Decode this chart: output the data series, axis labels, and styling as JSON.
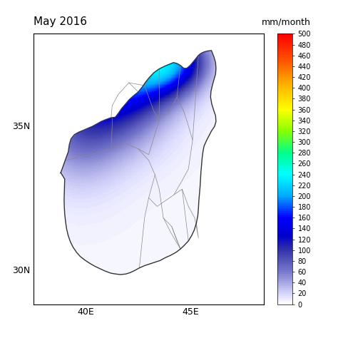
{
  "title": "May 2016",
  "unit_label": "mm/month",
  "colorbar_min": 0,
  "colorbar_max": 500,
  "colorbar_ticks": [
    0,
    20,
    40,
    60,
    80,
    100,
    120,
    140,
    160,
    180,
    200,
    220,
    240,
    260,
    280,
    300,
    320,
    340,
    360,
    380,
    400,
    420,
    440,
    460,
    480,
    500
  ],
  "xlim": [
    37.5,
    48.5
  ],
  "ylim": [
    28.8,
    38.2
  ],
  "xticks": [
    40,
    45
  ],
  "yticks": [
    30,
    35
  ],
  "xlabel_labels": [
    "40E",
    "45E"
  ],
  "ylabel_labels": [
    "30N",
    "35N"
  ],
  "background_color": "#ffffff",
  "figsize": [
    4.74,
    4.74
  ],
  "dpi": 100,
  "iraq_boundary": [
    [
      38.79,
      33.37
    ],
    [
      39.0,
      33.8
    ],
    [
      39.15,
      34.1
    ],
    [
      39.2,
      34.35
    ],
    [
      39.28,
      34.55
    ],
    [
      39.45,
      34.7
    ],
    [
      39.65,
      34.78
    ],
    [
      39.88,
      34.85
    ],
    [
      40.1,
      34.92
    ],
    [
      40.3,
      34.98
    ],
    [
      40.55,
      35.08
    ],
    [
      40.72,
      35.15
    ],
    [
      40.95,
      35.22
    ],
    [
      41.18,
      35.28
    ],
    [
      41.4,
      35.3
    ],
    [
      41.55,
      35.44
    ],
    [
      41.7,
      35.6
    ],
    [
      41.88,
      35.75
    ],
    [
      42.05,
      35.9
    ],
    [
      42.28,
      36.05
    ],
    [
      42.5,
      36.18
    ],
    [
      42.7,
      36.36
    ],
    [
      42.85,
      36.52
    ],
    [
      43.05,
      36.7
    ],
    [
      43.25,
      36.85
    ],
    [
      43.5,
      36.98
    ],
    [
      43.78,
      37.08
    ],
    [
      43.98,
      37.14
    ],
    [
      44.18,
      37.2
    ],
    [
      44.35,
      37.17
    ],
    [
      44.52,
      37.1
    ],
    [
      44.68,
      37.0
    ],
    [
      44.82,
      37.0
    ],
    [
      44.98,
      37.1
    ],
    [
      45.1,
      37.2
    ],
    [
      45.38,
      37.45
    ],
    [
      45.5,
      37.52
    ],
    [
      45.65,
      37.57
    ],
    [
      45.8,
      37.6
    ],
    [
      46.0,
      37.62
    ],
    [
      46.12,
      37.4
    ],
    [
      46.2,
      37.2
    ],
    [
      46.22,
      37.0
    ],
    [
      46.2,
      36.8
    ],
    [
      46.12,
      36.6
    ],
    [
      46.05,
      36.42
    ],
    [
      45.98,
      36.2
    ],
    [
      45.96,
      36.0
    ],
    [
      46.02,
      35.75
    ],
    [
      46.12,
      35.52
    ],
    [
      46.2,
      35.35
    ],
    [
      46.22,
      35.15
    ],
    [
      46.15,
      34.98
    ],
    [
      46.0,
      34.82
    ],
    [
      45.88,
      34.65
    ],
    [
      45.76,
      34.48
    ],
    [
      45.65,
      34.3
    ],
    [
      45.6,
      34.12
    ],
    [
      45.56,
      33.9
    ],
    [
      45.53,
      33.65
    ],
    [
      45.5,
      33.4
    ],
    [
      45.48,
      33.15
    ],
    [
      45.46,
      32.9
    ],
    [
      45.43,
      32.65
    ],
    [
      45.4,
      32.4
    ],
    [
      45.38,
      32.15
    ],
    [
      45.35,
      31.88
    ],
    [
      45.28,
      31.62
    ],
    [
      45.18,
      31.38
    ],
    [
      45.05,
      31.18
    ],
    [
      44.9,
      31.0
    ],
    [
      44.72,
      30.86
    ],
    [
      44.52,
      30.72
    ],
    [
      44.3,
      30.6
    ],
    [
      44.05,
      30.5
    ],
    [
      43.8,
      30.42
    ],
    [
      43.55,
      30.32
    ],
    [
      43.3,
      30.26
    ],
    [
      43.05,
      30.2
    ],
    [
      42.8,
      30.14
    ],
    [
      42.55,
      30.06
    ],
    [
      42.35,
      29.98
    ],
    [
      42.12,
      29.9
    ],
    [
      41.9,
      29.85
    ],
    [
      41.65,
      29.83
    ],
    [
      41.42,
      29.85
    ],
    [
      41.18,
      29.88
    ],
    [
      40.92,
      29.95
    ],
    [
      40.68,
      30.03
    ],
    [
      40.42,
      30.12
    ],
    [
      40.18,
      30.22
    ],
    [
      39.95,
      30.33
    ],
    [
      39.72,
      30.46
    ],
    [
      39.55,
      30.6
    ],
    [
      39.38,
      30.78
    ],
    [
      39.25,
      30.97
    ],
    [
      39.15,
      31.18
    ],
    [
      39.07,
      31.42
    ],
    [
      39.02,
      31.67
    ],
    [
      38.98,
      31.93
    ],
    [
      38.96,
      32.18
    ],
    [
      38.95,
      32.43
    ],
    [
      38.96,
      32.68
    ],
    [
      38.97,
      32.93
    ],
    [
      38.98,
      33.15
    ],
    [
      38.79,
      33.37
    ]
  ],
  "province_borders": [
    [
      [
        41.2,
        35.3
      ],
      [
        41.25,
        35.7
      ],
      [
        41.55,
        36.1
      ],
      [
        42.05,
        36.5
      ],
      [
        42.5,
        36.18
      ]
    ],
    [
      [
        42.05,
        36.5
      ],
      [
        42.8,
        36.4
      ],
      [
        43.25,
        36.85
      ]
    ],
    [
      [
        42.8,
        36.4
      ],
      [
        43.05,
        35.9
      ],
      [
        43.25,
        35.5
      ],
      [
        43.5,
        35.2
      ]
    ],
    [
      [
        43.5,
        36.98
      ],
      [
        43.5,
        36.2
      ],
      [
        43.5,
        35.2
      ]
    ],
    [
      [
        43.5,
        35.2
      ],
      [
        44.0,
        35.5
      ],
      [
        44.35,
        36.0
      ],
      [
        44.52,
        37.1
      ]
    ],
    [
      [
        44.35,
        36.0
      ],
      [
        44.68,
        35.5
      ],
      [
        44.9,
        35.0
      ],
      [
        45.1,
        34.5
      ],
      [
        45.38,
        37.45
      ]
    ],
    [
      [
        39.0,
        33.8
      ],
      [
        40.2,
        34.0
      ],
      [
        41.2,
        34.2
      ],
      [
        41.85,
        34.4
      ],
      [
        42.5,
        34.2
      ],
      [
        43.0,
        34.0
      ],
      [
        43.5,
        35.2
      ]
    ],
    [
      [
        41.2,
        34.2
      ],
      [
        41.25,
        35.0
      ],
      [
        41.25,
        35.3
      ]
    ],
    [
      [
        42.5,
        34.2
      ],
      [
        43.0,
        33.8
      ],
      [
        43.3,
        33.3
      ],
      [
        43.5,
        32.8
      ],
      [
        43.6,
        32.3
      ],
      [
        43.7,
        31.8
      ],
      [
        44.05,
        31.3
      ],
      [
        44.52,
        30.72
      ]
    ],
    [
      [
        43.6,
        32.3
      ],
      [
        44.2,
        32.6
      ],
      [
        44.6,
        32.8
      ],
      [
        44.9,
        31.0
      ]
    ],
    [
      [
        44.2,
        32.6
      ],
      [
        44.6,
        33.1
      ],
      [
        44.9,
        33.5
      ],
      [
        45.1,
        34.5
      ]
    ],
    [
      [
        44.6,
        32.8
      ],
      [
        44.9,
        32.2
      ],
      [
        45.2,
        31.8
      ],
      [
        45.38,
        31.1
      ],
      [
        45.28,
        31.62
      ]
    ],
    [
      [
        43.7,
        31.8
      ],
      [
        44.1,
        31.5
      ],
      [
        44.52,
        30.72
      ]
    ],
    [
      [
        43.3,
        33.3
      ],
      [
        43.0,
        32.5
      ],
      [
        42.8,
        31.8
      ],
      [
        42.55,
        30.06
      ]
    ],
    [
      [
        43.0,
        32.5
      ],
      [
        43.4,
        32.2
      ],
      [
        43.6,
        32.3
      ]
    ],
    [
      [
        44.1,
        31.5
      ],
      [
        44.3,
        31.1
      ],
      [
        44.52,
        30.72
      ]
    ]
  ]
}
